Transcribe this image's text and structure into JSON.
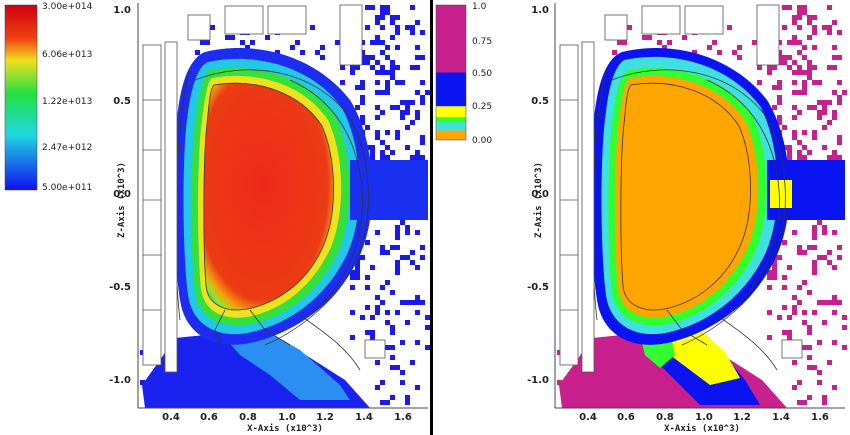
{
  "chart_data": [
    {
      "type": "heatmap",
      "panel": "left",
      "xlabel": "X-Axis (x10^3)",
      "ylabel": "Z-Axis (x10^3)",
      "xticks": [
        "0.4",
        "0.6",
        "0.8",
        "1.0",
        "1.2",
        "1.4",
        "1.6"
      ],
      "yticks": [
        "1.0",
        "0.5",
        "0.0",
        "-0.5",
        "-1.0"
      ],
      "xlim": [
        0.25,
        1.77
      ],
      "ylim": [
        -1.13,
        1.03
      ],
      "colorbar": {
        "scale": "log",
        "labels": [
          "3.00e+014",
          "6.06e+013",
          "1.22e+013",
          "2.47e+012",
          "5.00e+011"
        ],
        "colors": [
          "#e8101a",
          "#f0e020",
          "#22e040",
          "#20d8e0",
          "#1020f0"
        ]
      }
    },
    {
      "type": "heatmap",
      "panel": "right",
      "xlabel": "X-Axis (x10^3)",
      "ylabel": "Z-Axis (x10^3)",
      "xticks": [
        "0.4",
        "0.6",
        "0.8",
        "1.0",
        "1.2",
        "1.4",
        "1.6"
      ],
      "yticks": [
        "1.0",
        "0.5",
        "0.0",
        "-0.5",
        "-1.0"
      ],
      "xlim": [
        0.25,
        1.77
      ],
      "ylim": [
        -1.13,
        1.03
      ],
      "colorbar": {
        "scale": "discrete",
        "labels": [
          "1.0",
          "0.75",
          "0.50",
          "0.25",
          "0.00"
        ],
        "bands": [
          {
            "from": 0.0,
            "to": 0.07,
            "color": "#ffa500"
          },
          {
            "from": 0.07,
            "to": 0.13,
            "color": "#40e0e0"
          },
          {
            "from": 0.13,
            "to": 0.17,
            "color": "#30ff30"
          },
          {
            "from": 0.17,
            "to": 0.25,
            "color": "#ffff00"
          },
          {
            "from": 0.25,
            "to": 0.5,
            "color": "#0a14f0"
          },
          {
            "from": 0.5,
            "to": 1.0,
            "color": "#c8208c"
          }
        ]
      }
    }
  ],
  "colors": {
    "divider": "#000000"
  }
}
